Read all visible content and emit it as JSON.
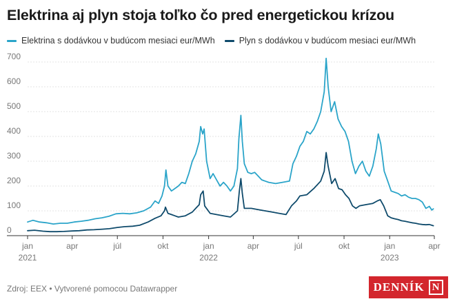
{
  "title": "Elektrina aj plyn stoja toľko čo pred energetickou krízou",
  "legend": {
    "electricity": "Elektrina s dodávkou v budúcom mesiaci eur/MWh",
    "gas": "Plyn s dodávkou v budúcom mesiaci eur/MWh"
  },
  "footer": "Zdroj: EEX • Vytvorené pomocou Datawrapper",
  "logo": {
    "word": "DENNÍK",
    "mark": "N"
  },
  "colors": {
    "electricity": "#2aa4c9",
    "gas": "#0e4a6b",
    "grid": "#e3e3e3",
    "axis": "#333333",
    "logo": "#d3262d"
  },
  "chart_data": {
    "type": "line",
    "ylim": [
      0,
      700
    ],
    "yticks": [
      0,
      100,
      200,
      300,
      400,
      500,
      600,
      700
    ],
    "xlim": [
      "2021-01-01",
      "2023-04-01"
    ],
    "xticks": [
      {
        "date": "2021-01-01",
        "label": "jan",
        "year": "2021"
      },
      {
        "date": "2021-04-01",
        "label": "apr",
        "year": ""
      },
      {
        "date": "2021-07-01",
        "label": "júl",
        "year": ""
      },
      {
        "date": "2021-10-01",
        "label": "okt",
        "year": ""
      },
      {
        "date": "2022-01-01",
        "label": "jan",
        "year": "2022"
      },
      {
        "date": "2022-04-01",
        "label": "apr",
        "year": ""
      },
      {
        "date": "2022-07-01",
        "label": "júl",
        "year": ""
      },
      {
        "date": "2022-10-01",
        "label": "okt",
        "year": ""
      },
      {
        "date": "2023-01-01",
        "label": "jan",
        "year": "2023"
      },
      {
        "date": "2023-04-01",
        "label": "apr",
        "year": ""
      }
    ],
    "series": [
      {
        "name": "Elektrina s dodávkou v budúcom mesiaci eur/MWh",
        "color": "#2aa4c9",
        "points": [
          [
            "2021-01-01",
            55
          ],
          [
            "2021-01-12",
            62
          ],
          [
            "2021-01-25",
            55
          ],
          [
            "2021-02-08",
            52
          ],
          [
            "2021-02-22",
            47
          ],
          [
            "2021-03-08",
            50
          ],
          [
            "2021-03-22",
            50
          ],
          [
            "2021-04-05",
            55
          ],
          [
            "2021-04-19",
            58
          ],
          [
            "2021-05-03",
            62
          ],
          [
            "2021-05-17",
            68
          ],
          [
            "2021-05-31",
            72
          ],
          [
            "2021-06-14",
            78
          ],
          [
            "2021-06-28",
            88
          ],
          [
            "2021-07-12",
            90
          ],
          [
            "2021-07-26",
            88
          ],
          [
            "2021-08-09",
            92
          ],
          [
            "2021-08-23",
            100
          ],
          [
            "2021-09-06",
            115
          ],
          [
            "2021-09-15",
            140
          ],
          [
            "2021-09-22",
            130
          ],
          [
            "2021-09-29",
            160
          ],
          [
            "2021-10-04",
            200
          ],
          [
            "2021-10-07",
            265
          ],
          [
            "2021-10-11",
            200
          ],
          [
            "2021-10-18",
            180
          ],
          [
            "2021-10-25",
            190
          ],
          [
            "2021-11-01",
            200
          ],
          [
            "2021-11-08",
            215
          ],
          [
            "2021-11-15",
            210
          ],
          [
            "2021-11-22",
            250
          ],
          [
            "2021-11-29",
            300
          ],
          [
            "2021-12-06",
            330
          ],
          [
            "2021-12-13",
            380
          ],
          [
            "2021-12-16",
            440
          ],
          [
            "2021-12-20",
            410
          ],
          [
            "2021-12-23",
            430
          ],
          [
            "2021-12-28",
            300
          ],
          [
            "2022-01-04",
            230
          ],
          [
            "2022-01-10",
            250
          ],
          [
            "2022-01-17",
            225
          ],
          [
            "2022-01-24",
            200
          ],
          [
            "2022-01-31",
            215
          ],
          [
            "2022-02-07",
            200
          ],
          [
            "2022-02-14",
            180
          ],
          [
            "2022-02-21",
            200
          ],
          [
            "2022-02-28",
            270
          ],
          [
            "2022-03-03",
            390
          ],
          [
            "2022-03-07",
            485
          ],
          [
            "2022-03-10",
            380
          ],
          [
            "2022-03-14",
            290
          ],
          [
            "2022-03-21",
            255
          ],
          [
            "2022-03-28",
            250
          ],
          [
            "2022-04-04",
            255
          ],
          [
            "2022-04-11",
            240
          ],
          [
            "2022-04-18",
            225
          ],
          [
            "2022-04-25",
            220
          ],
          [
            "2022-05-02",
            215
          ],
          [
            "2022-05-16",
            210
          ],
          [
            "2022-05-30",
            215
          ],
          [
            "2022-06-13",
            220
          ],
          [
            "2022-06-20",
            290
          ],
          [
            "2022-06-27",
            320
          ],
          [
            "2022-07-04",
            360
          ],
          [
            "2022-07-11",
            380
          ],
          [
            "2022-07-18",
            420
          ],
          [
            "2022-07-25",
            410
          ],
          [
            "2022-08-01",
            430
          ],
          [
            "2022-08-08",
            460
          ],
          [
            "2022-08-15",
            500
          ],
          [
            "2022-08-22",
            580
          ],
          [
            "2022-08-26",
            715
          ],
          [
            "2022-08-30",
            600
          ],
          [
            "2022-09-05",
            500
          ],
          [
            "2022-09-12",
            540
          ],
          [
            "2022-09-19",
            470
          ],
          [
            "2022-09-26",
            440
          ],
          [
            "2022-10-03",
            420
          ],
          [
            "2022-10-10",
            380
          ],
          [
            "2022-10-17",
            300
          ],
          [
            "2022-10-24",
            250
          ],
          [
            "2022-10-31",
            280
          ],
          [
            "2022-11-07",
            300
          ],
          [
            "2022-11-14",
            260
          ],
          [
            "2022-11-21",
            240
          ],
          [
            "2022-11-28",
            280
          ],
          [
            "2022-12-05",
            350
          ],
          [
            "2022-12-09",
            410
          ],
          [
            "2022-12-14",
            370
          ],
          [
            "2022-12-21",
            260
          ],
          [
            "2022-12-28",
            220
          ],
          [
            "2023-01-04",
            180
          ],
          [
            "2023-01-11",
            175
          ],
          [
            "2023-01-18",
            170
          ],
          [
            "2023-01-25",
            160
          ],
          [
            "2023-02-01",
            165
          ],
          [
            "2023-02-08",
            155
          ],
          [
            "2023-02-15",
            150
          ],
          [
            "2023-02-22",
            150
          ],
          [
            "2023-03-01",
            145
          ],
          [
            "2023-03-08",
            135
          ],
          [
            "2023-03-15",
            110
          ],
          [
            "2023-03-22",
            118
          ],
          [
            "2023-03-27",
            103
          ],
          [
            "2023-03-30",
            108
          ]
        ]
      },
      {
        "name": "Plyn s dodávkou v budúcom mesiaci eur/MWh",
        "color": "#0e4a6b",
        "points": [
          [
            "2021-01-01",
            20
          ],
          [
            "2021-01-15",
            22
          ],
          [
            "2021-02-01",
            18
          ],
          [
            "2021-02-15",
            16
          ],
          [
            "2021-03-01",
            16
          ],
          [
            "2021-03-15",
            17
          ],
          [
            "2021-04-01",
            19
          ],
          [
            "2021-04-15",
            20
          ],
          [
            "2021-05-01",
            23
          ],
          [
            "2021-05-15",
            24
          ],
          [
            "2021-06-01",
            26
          ],
          [
            "2021-06-15",
            28
          ],
          [
            "2021-07-01",
            33
          ],
          [
            "2021-07-15",
            36
          ],
          [
            "2021-08-01",
            38
          ],
          [
            "2021-08-15",
            42
          ],
          [
            "2021-09-01",
            55
          ],
          [
            "2021-09-15",
            70
          ],
          [
            "2021-09-27",
            80
          ],
          [
            "2021-10-04",
            100
          ],
          [
            "2021-10-06",
            115
          ],
          [
            "2021-10-11",
            90
          ],
          [
            "2021-10-18",
            85
          ],
          [
            "2021-10-25",
            80
          ],
          [
            "2021-11-01",
            75
          ],
          [
            "2021-11-15",
            80
          ],
          [
            "2021-11-29",
            95
          ],
          [
            "2021-12-06",
            110
          ],
          [
            "2021-12-13",
            125
          ],
          [
            "2021-12-16",
            165
          ],
          [
            "2021-12-21",
            180
          ],
          [
            "2021-12-24",
            120
          ],
          [
            "2022-01-04",
            90
          ],
          [
            "2022-01-17",
            85
          ],
          [
            "2022-01-31",
            80
          ],
          [
            "2022-02-14",
            75
          ],
          [
            "2022-02-28",
            100
          ],
          [
            "2022-03-04",
            180
          ],
          [
            "2022-03-07",
            230
          ],
          [
            "2022-03-10",
            170
          ],
          [
            "2022-03-14",
            110
          ],
          [
            "2022-03-28",
            110
          ],
          [
            "2022-04-11",
            105
          ],
          [
            "2022-04-25",
            100
          ],
          [
            "2022-05-09",
            95
          ],
          [
            "2022-05-23",
            90
          ],
          [
            "2022-06-06",
            85
          ],
          [
            "2022-06-17",
            120
          ],
          [
            "2022-06-27",
            140
          ],
          [
            "2022-07-04",
            160
          ],
          [
            "2022-07-18",
            165
          ],
          [
            "2022-08-01",
            190
          ],
          [
            "2022-08-15",
            220
          ],
          [
            "2022-08-22",
            260
          ],
          [
            "2022-08-26",
            335
          ],
          [
            "2022-08-30",
            280
          ],
          [
            "2022-09-06",
            210
          ],
          [
            "2022-09-13",
            230
          ],
          [
            "2022-09-20",
            190
          ],
          [
            "2022-09-27",
            185
          ],
          [
            "2022-10-04",
            165
          ],
          [
            "2022-10-11",
            150
          ],
          [
            "2022-10-18",
            120
          ],
          [
            "2022-10-25",
            110
          ],
          [
            "2022-11-01",
            120
          ],
          [
            "2022-11-14",
            125
          ],
          [
            "2022-11-28",
            130
          ],
          [
            "2022-12-07",
            140
          ],
          [
            "2022-12-13",
            145
          ],
          [
            "2022-12-20",
            120
          ],
          [
            "2022-12-28",
            80
          ],
          [
            "2023-01-04",
            72
          ],
          [
            "2023-01-11",
            68
          ],
          [
            "2023-01-18",
            65
          ],
          [
            "2023-01-25",
            60
          ],
          [
            "2023-02-01",
            58
          ],
          [
            "2023-02-08",
            55
          ],
          [
            "2023-02-15",
            52
          ],
          [
            "2023-02-22",
            50
          ],
          [
            "2023-03-01",
            47
          ],
          [
            "2023-03-08",
            45
          ],
          [
            "2023-03-15",
            44
          ],
          [
            "2023-03-22",
            45
          ],
          [
            "2023-03-30",
            40
          ]
        ]
      }
    ]
  }
}
